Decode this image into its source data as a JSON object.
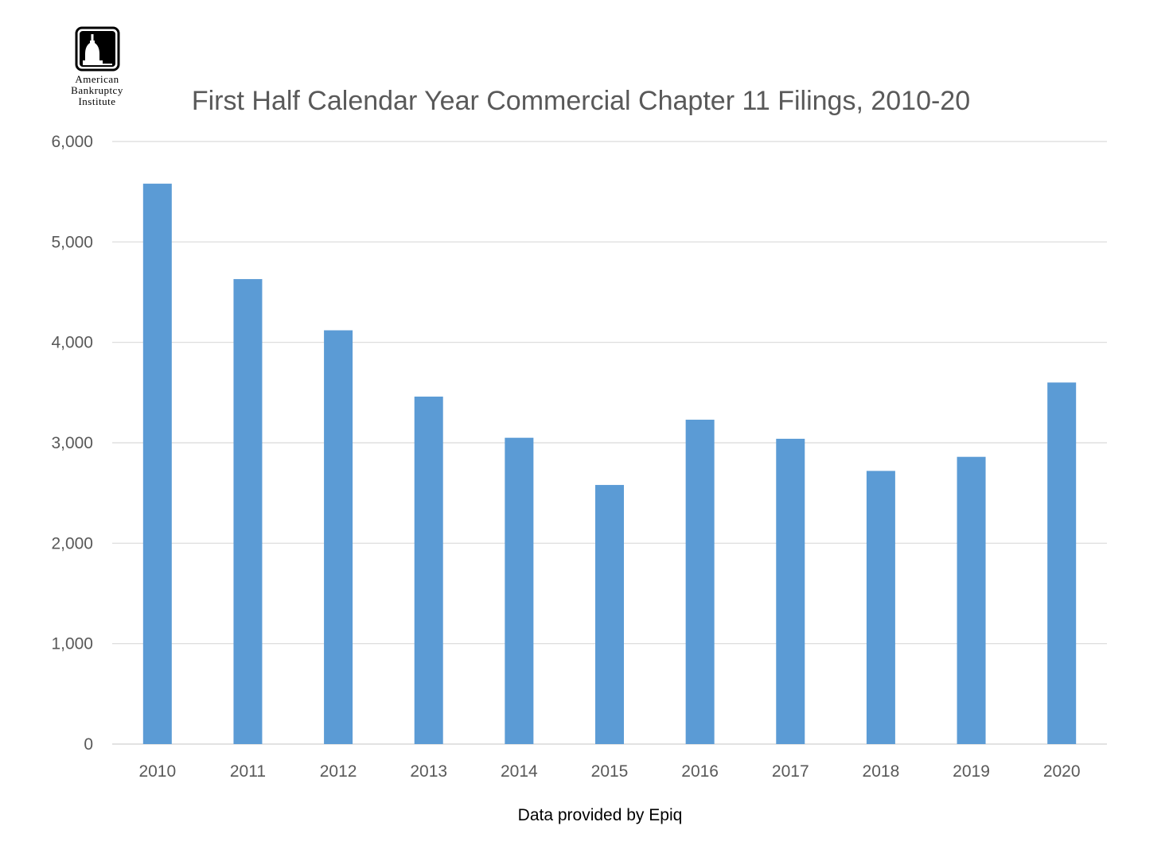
{
  "logo": {
    "name": "capitol-dome-icon",
    "lines": [
      "American",
      "Bankruptcy",
      "Institute"
    ]
  },
  "chart_data": {
    "type": "bar",
    "title": "First Half Calendar Year Commercial Chapter 11 Filings, 2010-20",
    "source": "Data provided by Epiq",
    "categories": [
      "2010",
      "2011",
      "2012",
      "2013",
      "2014",
      "2015",
      "2016",
      "2017",
      "2018",
      "2019",
      "2020"
    ],
    "values": [
      5580,
      4630,
      4120,
      3460,
      3050,
      2580,
      3230,
      3040,
      2720,
      2860,
      3600
    ],
    "ylim": [
      0,
      6000
    ],
    "yticks": [
      0,
      1000,
      2000,
      3000,
      4000,
      5000,
      6000
    ],
    "ytick_labels": [
      "0",
      "1,000",
      "2,000",
      "3,000",
      "4,000",
      "5,000",
      "6,000"
    ],
    "grid": true,
    "legend": false,
    "bar_color": "#5B9BD5",
    "grid_color": "#D9D9D9"
  }
}
